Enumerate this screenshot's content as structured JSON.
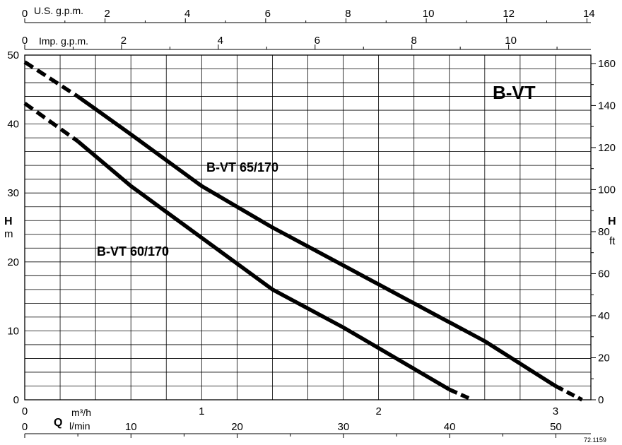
{
  "chart_data": {
    "type": "line",
    "title": "B-VT",
    "code": "72.1159",
    "x_axes": {
      "m3h": {
        "label": "m³/h",
        "ticks": [
          "0",
          "1",
          "2",
          "3"
        ],
        "range": [
          0,
          3.2
        ]
      },
      "lmin": {
        "label": "l/min",
        "ticks": [
          "0",
          "10",
          "20",
          "30",
          "40",
          "50"
        ],
        "range": [
          0,
          53.3
        ]
      },
      "usgpm": {
        "label": "U.S. g.p.m.",
        "ticks": [
          "0",
          "2",
          "4",
          "6",
          "8",
          "10",
          "12",
          "14"
        ],
        "range": [
          0,
          14.1
        ]
      },
      "impgpm": {
        "label": "Imp. g.p.m.",
        "ticks": [
          "0",
          "2",
          "4",
          "6",
          "8",
          "10"
        ],
        "range": [
          0,
          11.7
        ]
      }
    },
    "q_symbol": "Q",
    "y_left": {
      "label": "H",
      "unit": "m",
      "ticks": [
        "0",
        "10",
        "20",
        "30",
        "40",
        "50"
      ],
      "range": [
        0,
        50
      ]
    },
    "y_right": {
      "label": "H",
      "unit": "ft",
      "ticks": [
        "0",
        "20",
        "40",
        "60",
        "80",
        "100",
        "120",
        "140",
        "160"
      ],
      "range": [
        0,
        164
      ]
    },
    "series": [
      {
        "name": "B-VT 65/170",
        "x_m3h": [
          0,
          0.3,
          0.6,
          1.0,
          1.4,
          1.8,
          2.2,
          2.6,
          3.0,
          3.15
        ],
        "y_m": [
          49,
          44,
          38.5,
          31,
          25,
          19.5,
          14,
          8.5,
          2,
          0
        ],
        "dashed_start": 0.3,
        "dashed_end": 3.0
      },
      {
        "name": "B-VT 60/170",
        "x_m3h": [
          0,
          0.3,
          0.6,
          1.0,
          1.4,
          1.8,
          2.2,
          2.4,
          2.53
        ],
        "y_m": [
          43,
          37.5,
          31,
          23.5,
          16,
          10.5,
          4.5,
          1.5,
          0
        ],
        "dashed_start": 0.3,
        "dashed_end": 2.4
      }
    ]
  }
}
